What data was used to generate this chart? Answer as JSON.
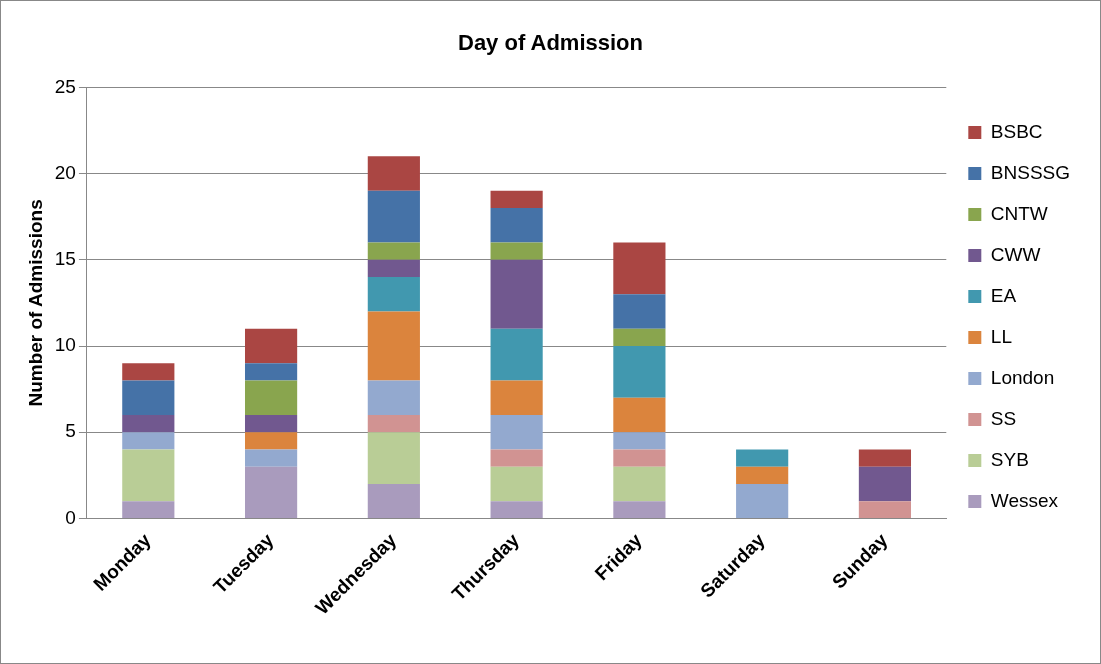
{
  "chart_data": {
    "type": "bar",
    "title": "Day of Admission",
    "ylabel": "Number of Admissions",
    "categories": [
      "Monday",
      "Tuesday",
      "Wednesday",
      "Thursday",
      "Friday",
      "Saturday",
      "Sunday"
    ],
    "stacked": true,
    "ylim": [
      0,
      25
    ],
    "yticks": [
      0,
      5,
      10,
      15,
      20,
      25
    ],
    "grid": "y",
    "legend": "right",
    "series": [
      {
        "name": "Wessex",
        "color": "#a99bbd",
        "values": [
          1,
          3,
          2,
          1,
          1,
          0,
          0
        ]
      },
      {
        "name": "SYB",
        "color": "#b9cd96",
        "values": [
          3,
          0,
          3,
          2,
          2,
          0,
          0
        ]
      },
      {
        "name": "SS",
        "color": "#d19392",
        "values": [
          0,
          0,
          1,
          1,
          1,
          0,
          1
        ]
      },
      {
        "name": "London",
        "color": "#93a9cf",
        "values": [
          1,
          1,
          2,
          2,
          1,
          2,
          0
        ]
      },
      {
        "name": "LL",
        "color": "#db843d",
        "values": [
          0,
          1,
          4,
          2,
          2,
          1,
          0
        ]
      },
      {
        "name": "EA",
        "color": "#4198af",
        "values": [
          0,
          0,
          2,
          3,
          3,
          1,
          0
        ]
      },
      {
        "name": "CWW",
        "color": "#71588f",
        "values": [
          1,
          1,
          1,
          4,
          0,
          0,
          2
        ]
      },
      {
        "name": "CNTW",
        "color": "#89a54e",
        "values": [
          0,
          2,
          1,
          1,
          1,
          0,
          0
        ]
      },
      {
        "name": "BNSSSG",
        "color": "#4572a7",
        "values": [
          2,
          1,
          3,
          2,
          2,
          0,
          0
        ]
      },
      {
        "name": "BSBC",
        "color": "#aa4643",
        "values": [
          1,
          2,
          2,
          1,
          3,
          0,
          1
        ]
      }
    ]
  }
}
